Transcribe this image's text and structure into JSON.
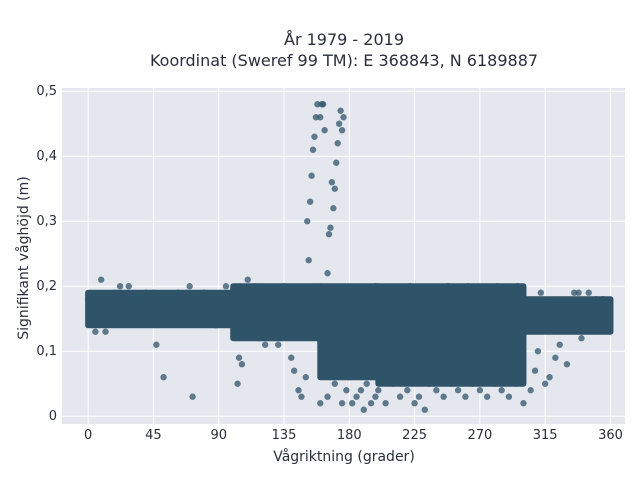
{
  "chart_data": {
    "type": "scatter",
    "title_line1": "År 1979 - 2019",
    "title_line2": "Koordinat (Sweref 99 TM): E 368843, N 6189887",
    "xlabel": "Vågriktning (grader)",
    "ylabel": "Signifikant våghöjd (m)",
    "xlim": [
      -18,
      370
    ],
    "ylim": [
      -0.012,
      0.505
    ],
    "x_ticks": [
      0,
      45,
      90,
      135,
      180,
      225,
      270,
      315,
      360
    ],
    "x_tick_labels": [
      "0",
      "45",
      "90",
      "135",
      "180",
      "225",
      "270",
      "315",
      "360"
    ],
    "y_ticks": [
      0,
      0.1,
      0.2,
      0.3,
      0.4,
      0.5
    ],
    "y_tick_labels": [
      "0",
      "0,1",
      "0,2",
      "0,3",
      "0,4",
      "0,5"
    ],
    "grid": true,
    "marker_color": "#2f5469",
    "background_color": "#e5e7ef",
    "dense_bands": [
      {
        "x_range": [
          0,
          100
        ],
        "y_range": [
          0.14,
          0.19
        ]
      },
      {
        "x_range": [
          100,
          160
        ],
        "y_range": [
          0.12,
          0.2
        ]
      },
      {
        "x_range": [
          160,
          200
        ],
        "y_range": [
          0.06,
          0.2
        ]
      },
      {
        "x_range": [
          200,
          300
        ],
        "y_range": [
          0.05,
          0.2
        ]
      },
      {
        "x_range": [
          300,
          360
        ],
        "y_range": [
          0.13,
          0.18
        ]
      }
    ],
    "points": [
      [
        0,
        0.18
      ],
      [
        5,
        0.13
      ],
      [
        9,
        0.21
      ],
      [
        12,
        0.13
      ],
      [
        18,
        0.19
      ],
      [
        22,
        0.2
      ],
      [
        28,
        0.2
      ],
      [
        35,
        0.17
      ],
      [
        38,
        0.18
      ],
      [
        40,
        0.19
      ],
      [
        45,
        0.19
      ],
      [
        47,
        0.11
      ],
      [
        52,
        0.06
      ],
      [
        58,
        0.18
      ],
      [
        62,
        0.19
      ],
      [
        68,
        0.19
      ],
      [
        70,
        0.2
      ],
      [
        72,
        0.03
      ],
      [
        80,
        0.19
      ],
      [
        88,
        0.14
      ],
      [
        92,
        0.18
      ],
      [
        95,
        0.2
      ],
      [
        100,
        0.19
      ],
      [
        103,
        0.05
      ],
      [
        104,
        0.09
      ],
      [
        106,
        0.08
      ],
      [
        108,
        0.13
      ],
      [
        110,
        0.21
      ],
      [
        115,
        0.2
      ],
      [
        118,
        0.12
      ],
      [
        122,
        0.11
      ],
      [
        128,
        0.19
      ],
      [
        131,
        0.11
      ],
      [
        135,
        0.2
      ],
      [
        140,
        0.09
      ],
      [
        142,
        0.07
      ],
      [
        145,
        0.04
      ],
      [
        147,
        0.03
      ],
      [
        150,
        0.06
      ],
      [
        151,
        0.3
      ],
      [
        152,
        0.24
      ],
      [
        153,
        0.33
      ],
      [
        154,
        0.37
      ],
      [
        155,
        0.41
      ],
      [
        156,
        0.43
      ],
      [
        157,
        0.46
      ],
      [
        158,
        0.48
      ],
      [
        160,
        0.46
      ],
      [
        161,
        0.48
      ],
      [
        162,
        0.48
      ],
      [
        163,
        0.44
      ],
      [
        165,
        0.22
      ],
      [
        166,
        0.28
      ],
      [
        167,
        0.29
      ],
      [
        168,
        0.36
      ],
      [
        169,
        0.32
      ],
      [
        170,
        0.35
      ],
      [
        171,
        0.39
      ],
      [
        172,
        0.42
      ],
      [
        173,
        0.45
      ],
      [
        174,
        0.47
      ],
      [
        175,
        0.44
      ],
      [
        176,
        0.46
      ],
      [
        160,
        0.02
      ],
      [
        165,
        0.03
      ],
      [
        170,
        0.05
      ],
      [
        175,
        0.02
      ],
      [
        178,
        0.04
      ],
      [
        180,
        0.06
      ],
      [
        182,
        0.02
      ],
      [
        185,
        0.03
      ],
      [
        188,
        0.04
      ],
      [
        190,
        0.01
      ],
      [
        192,
        0.05
      ],
      [
        195,
        0.02
      ],
      [
        198,
        0.03
      ],
      [
        200,
        0.04
      ],
      [
        205,
        0.02
      ],
      [
        210,
        0.05
      ],
      [
        215,
        0.03
      ],
      [
        220,
        0.04
      ],
      [
        225,
        0.02
      ],
      [
        228,
        0.03
      ],
      [
        232,
        0.01
      ],
      [
        235,
        0.05
      ],
      [
        240,
        0.04
      ],
      [
        245,
        0.03
      ],
      [
        250,
        0.05
      ],
      [
        255,
        0.04
      ],
      [
        260,
        0.03
      ],
      [
        265,
        0.05
      ],
      [
        270,
        0.04
      ],
      [
        275,
        0.03
      ],
      [
        280,
        0.05
      ],
      [
        285,
        0.04
      ],
      [
        290,
        0.03
      ],
      [
        295,
        0.05
      ],
      [
        300,
        0.02
      ],
      [
        305,
        0.04
      ],
      [
        308,
        0.07
      ],
      [
        310,
        0.1
      ],
      [
        312,
        0.19
      ],
      [
        315,
        0.05
      ],
      [
        318,
        0.06
      ],
      [
        322,
        0.09
      ],
      [
        325,
        0.11
      ],
      [
        330,
        0.08
      ],
      [
        335,
        0.19
      ],
      [
        338,
        0.19
      ],
      [
        340,
        0.12
      ],
      [
        345,
        0.19
      ],
      [
        350,
        0.18
      ],
      [
        355,
        0.18
      ],
      [
        358,
        0.17
      ],
      [
        198,
        0.2
      ],
      [
        222,
        0.2
      ],
      [
        248,
        0.2
      ],
      [
        262,
        0.2
      ],
      [
        282,
        0.2
      ],
      [
        296,
        0.2
      ]
    ]
  }
}
